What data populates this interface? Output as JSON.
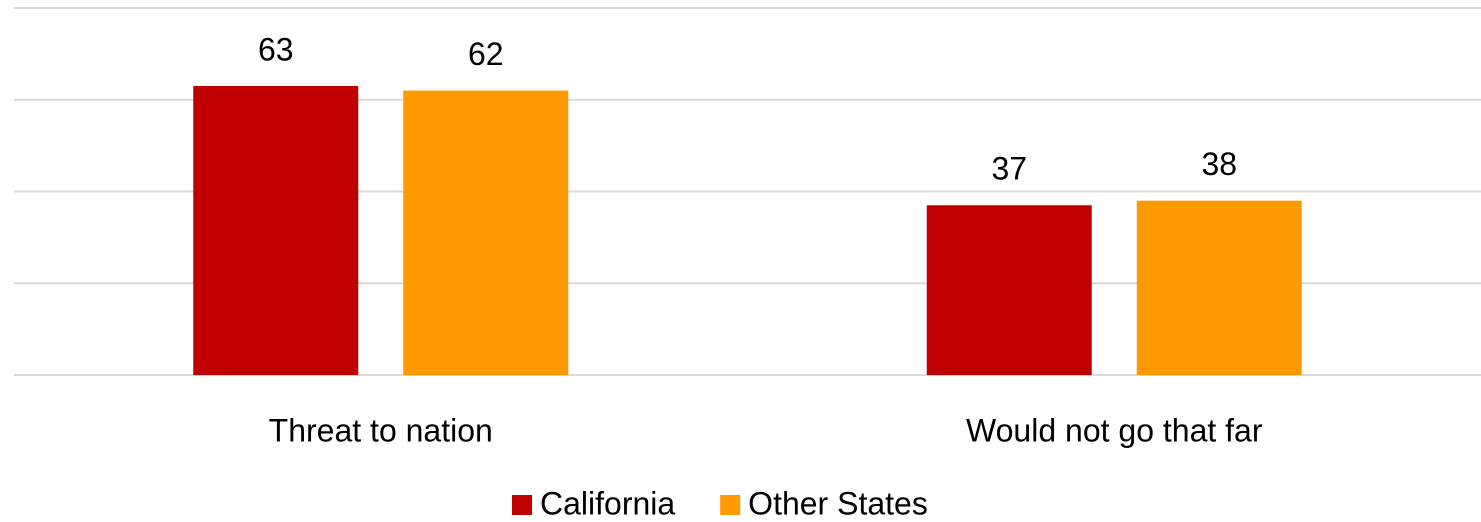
{
  "chart_data": {
    "type": "bar",
    "categories": [
      "Threat to nation",
      "Would not go that far"
    ],
    "series": [
      {
        "name": "California",
        "color": "#c00000",
        "values": [
          63,
          37
        ]
      },
      {
        "name": "Other States",
        "color": "#ff9900",
        "values": [
          62,
          38
        ]
      }
    ],
    "ylim": [
      0,
      80
    ],
    "yticks": [
      0,
      20,
      40,
      60,
      80
    ],
    "grid": true,
    "legend": "bottom"
  }
}
